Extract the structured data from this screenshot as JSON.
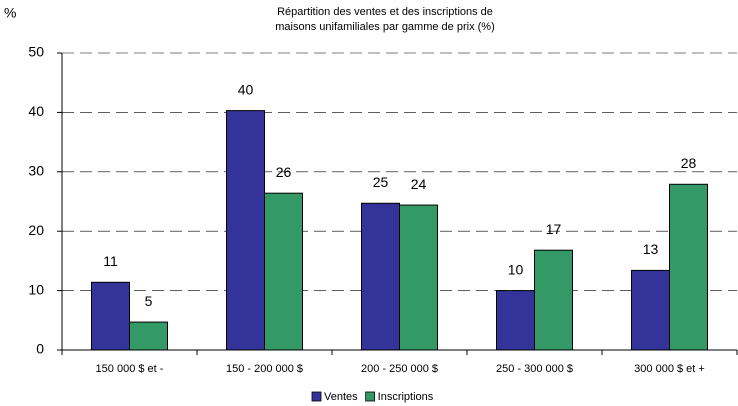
{
  "chart_data": {
    "type": "bar",
    "title": [
      "Répartition des ventes et des inscriptions de",
      "maisons unifamiliales par gamme de prix (%)"
    ],
    "y_label": "%",
    "categories": [
      "150 000 $ et -",
      "150 - 200 000 $",
      "200 - 250 000 $",
      "250 - 300 000 $",
      "300 000 $ et +"
    ],
    "series": [
      {
        "name": "Ventes",
        "color": "#333399",
        "values": [
          11.4,
          40.3,
          24.7,
          10,
          13.4
        ],
        "value_labels": [
          "11",
          "40",
          "25",
          "10",
          "13"
        ]
      },
      {
        "name": "Inscriptions",
        "color": "#339966",
        "values": [
          4.7,
          26.4,
          24.4,
          16.8,
          27.9
        ],
        "value_labels": [
          "5",
          "26",
          "24",
          "17",
          "28"
        ]
      }
    ],
    "ylim": [
      0,
      50
    ],
    "yticks": [
      0,
      10,
      20,
      30,
      40,
      50
    ],
    "grid": true,
    "legend": "bottom"
  }
}
